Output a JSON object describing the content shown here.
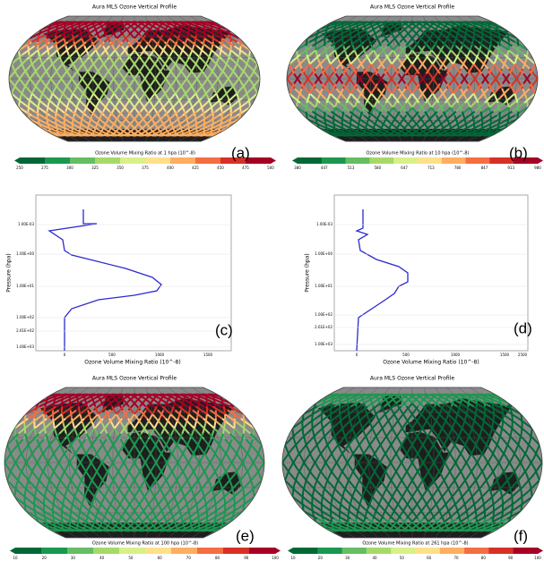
{
  "maps": [
    {
      "letter": "(a)",
      "title": "Aura MLS Ozone Vertical Profile",
      "colorbar_label": "Ozone Volume Mixing Ratio at 1 hpa (10^-8)",
      "colorbar_ticks": [
        "250",
        "275",
        "300",
        "325",
        "350",
        "375",
        "400",
        "425",
        "450",
        "475",
        "500"
      ]
    },
    {
      "letter": "(b)",
      "title": "Aura MLS Ozone Vertical Profile",
      "colorbar_label": "Ozone Volume Mixing Ratio at 10 hpa (10^-8)",
      "colorbar_ticks": [
        "380",
        "447",
        "513",
        "580",
        "647",
        "713",
        "780",
        "847",
        "913",
        "980"
      ]
    },
    {
      "letter": "(e)",
      "title": "Aura MLS Ozone Vertical Profile",
      "colorbar_label": "Ozone Volume Mixing Ratio at 100 hpa (10^-8)",
      "colorbar_ticks": [
        "10",
        "20",
        "30",
        "40",
        "50",
        "60",
        "70",
        "80",
        "90",
        "100"
      ]
    },
    {
      "letter": "(f)",
      "title": "Aura MLS Ozone Vertical Profile",
      "colorbar_label": "Ozone Volume Mixing Ratio at 261 hpa (10^-8)",
      "colorbar_ticks": [
        "10",
        "20",
        "30",
        "40",
        "50",
        "60",
        "70",
        "80",
        "90",
        "100"
      ]
    }
  ],
  "profiles": [
    {
      "letter": "(c)",
      "xlabel": "Ozone Volume Mixing Ratio (10^-8)",
      "ylabel": "Pressure (hpa)",
      "xticks": [
        "0",
        "500",
        "1000",
        "1500"
      ],
      "yticks": [
        "1.00E-03",
        "1.00E+00",
        "1.00E+01",
        "1.00E+02",
        "2.61E+02",
        "1.00E+03"
      ]
    },
    {
      "letter": "(d)",
      "xlabel": "Ozone Volume Mixing Ratio (10^-8)",
      "ylabel": "Pressure (hpa)",
      "xticks": [
        "0",
        "500",
        "1000",
        "1500",
        "2500"
      ],
      "yticks": [
        "1.00E-03",
        "1.00E+00",
        "1.00E+01",
        "1.00E+02",
        "2.61E+02",
        "1.00E+03"
      ]
    }
  ]
}
